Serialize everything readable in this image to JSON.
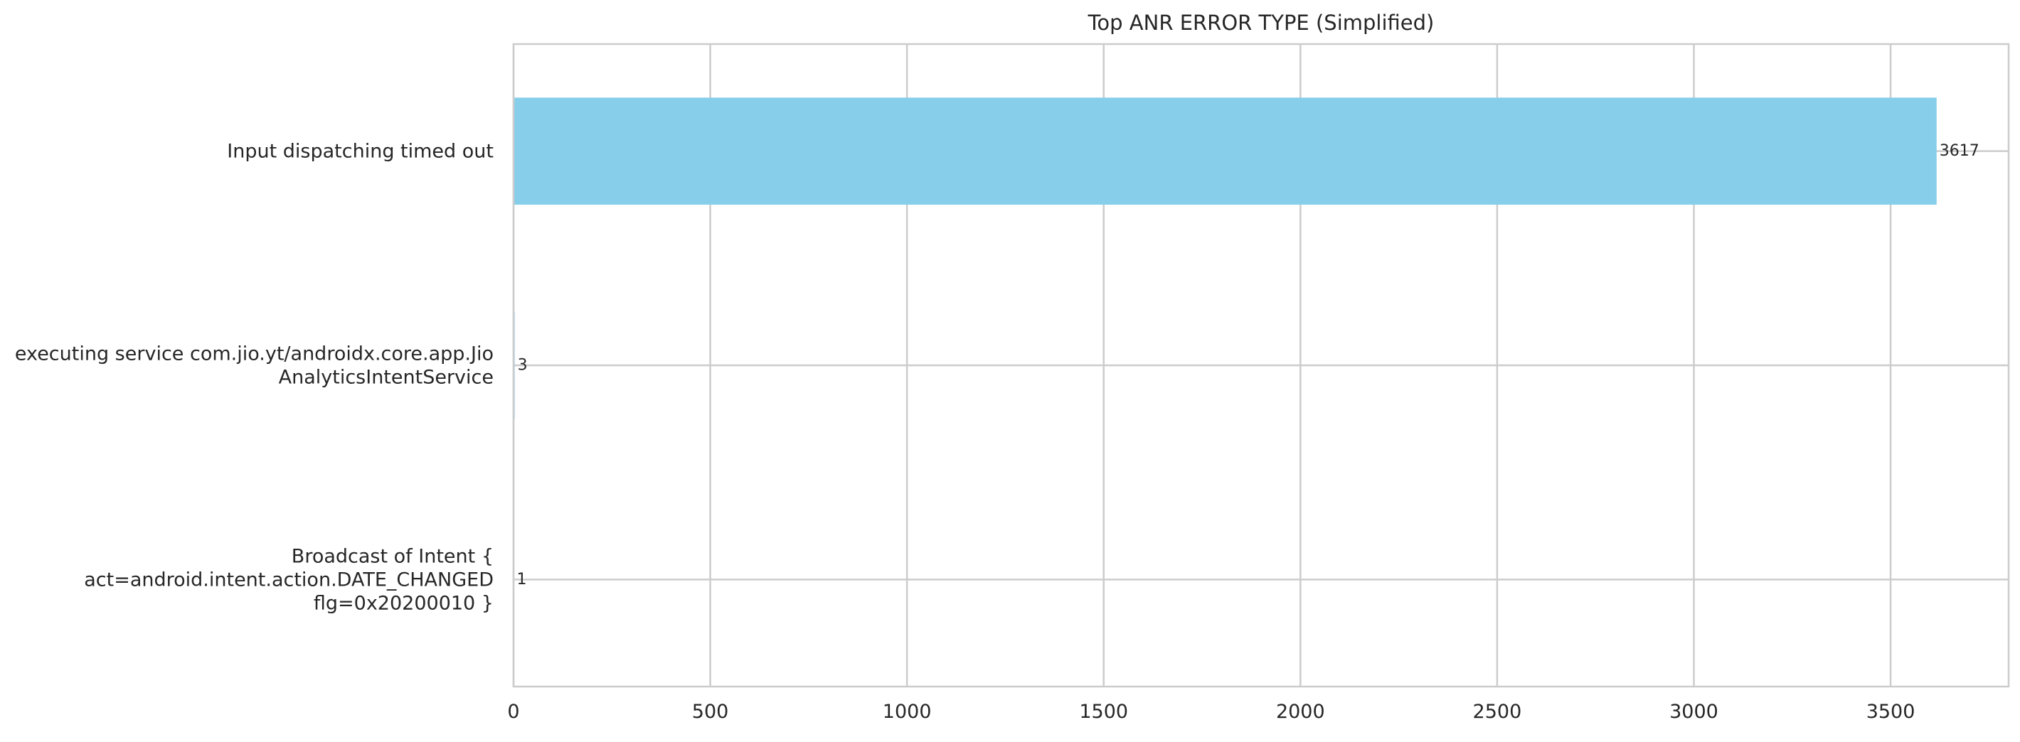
{
  "chart_data": {
    "type": "bar",
    "orientation": "horizontal",
    "title": "Top ANR ERROR TYPE (Simplified)",
    "xlabel": "",
    "ylabel": "",
    "categories": [
      [
        "Input dispatching timed out"
      ],
      [
        "executing service com.jio.yt/androidx.core.app.Jio",
        "AnalyticsIntentService"
      ],
      [
        "Broadcast of Intent {",
        "act=android.intent.action.DATE_CHANGED",
        "flg=0x20200010 }"
      ]
    ],
    "values": [
      3617,
      3,
      1
    ],
    "data_labels": [
      "3617",
      "3",
      "1"
    ],
    "xlim": [
      0,
      3800
    ],
    "xticks": [
      0,
      500,
      1000,
      1500,
      2000,
      2500,
      3000,
      3500
    ],
    "grid": true,
    "bar_color": "#87CEEB",
    "grid_color": "#cccccc",
    "axis_color": "#cccccc",
    "text_color": "#262626"
  }
}
